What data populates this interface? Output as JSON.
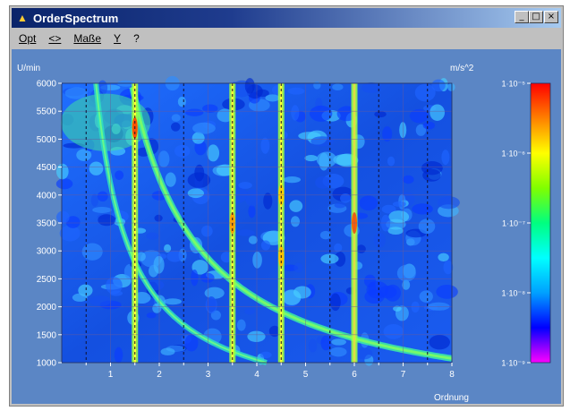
{
  "window": {
    "title": "OrderSpectrum",
    "buttons": {
      "minimize": "_",
      "maximize": "□",
      "close": "×"
    }
  },
  "menu": {
    "items": [
      "Opt",
      "<>",
      "Maße",
      "Y",
      "?"
    ]
  },
  "colors": {
    "plot_background": "#5b86c5",
    "colorbar": [
      "#ff00ff",
      "#0000ff",
      "#00a0ff",
      "#00ffff",
      "#00ff80",
      "#80ff00",
      "#ffff00",
      "#ff8000",
      "#ff0000"
    ]
  },
  "chart_data": {
    "type": "heatmap",
    "y_unit_label": "U/min",
    "xlabel": "Ordnung",
    "xlim": [
      0,
      8
    ],
    "ylim": [
      1000,
      6000
    ],
    "x_ticks": [
      "1",
      "2",
      "3",
      "4",
      "5",
      "6",
      "7",
      "8"
    ],
    "y_ticks": [
      "1000",
      "1500",
      "2000",
      "2500",
      "3000",
      "3500",
      "4000",
      "4500",
      "5000",
      "5500",
      "6000"
    ],
    "colorbar": {
      "unit": "m/s^2",
      "ticks": [
        "1·10⁻⁵",
        "1·10⁻⁶",
        "1·10⁻⁷",
        "1·10⁻⁸",
        "1·10⁻⁹"
      ]
    },
    "order_lines": [
      1.5,
      3.5,
      4.5,
      6
    ],
    "dashed_order_lines": [
      0.5,
      1.5,
      2.5,
      3.5,
      4.5,
      5.5,
      6.5,
      7.5
    ],
    "grid": true
  }
}
